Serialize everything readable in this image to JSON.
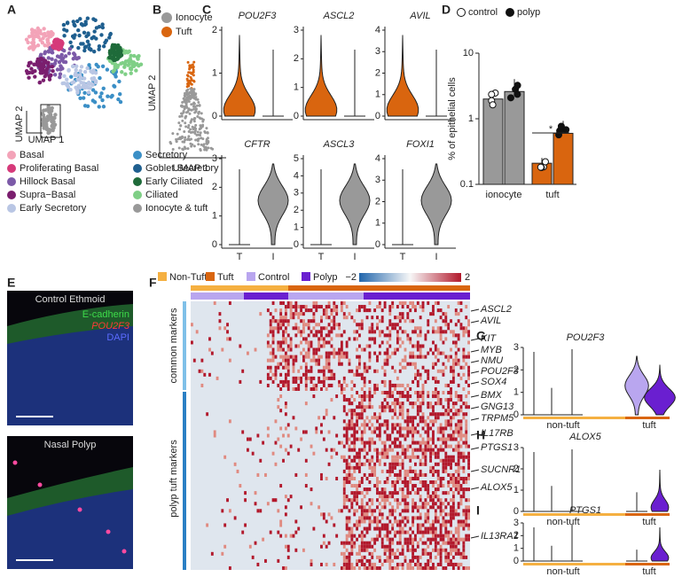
{
  "panels": [
    "A",
    "B",
    "C",
    "D",
    "E",
    "F",
    "G",
    "H",
    "I"
  ],
  "panel_a": {
    "axis_x": "UMAP 1",
    "axis_y": "UMAP 2",
    "legend": [
      "Basal",
      "Proliferating Basal",
      "Hillock Basal",
      "Supra−Basal",
      "Early Secretory",
      "Secretory",
      "Goblet Secretory",
      "Early Ciliated",
      "Ciliated",
      "Ionocyte & tuft"
    ],
    "legend_colors": [
      "#f3a3b8",
      "#d63a7a",
      "#7c5aa8",
      "#7a1e6e",
      "#b9c6e4",
      "#3b8fc6",
      "#1f5f8f",
      "#1f6b3a",
      "#7fcf86",
      "#999999"
    ]
  },
  "panel_b": {
    "legend": [
      "Ionocyte",
      "Tuft"
    ],
    "legend_colors": [
      "#999999",
      "#d9650f"
    ],
    "axis_x": "UMAP 1",
    "axis_y": "UMAP 2"
  },
  "panel_c": {
    "groups": [
      "T",
      "I"
    ],
    "violins": [
      {
        "gene": "POU2F3",
        "yticks": [
          0,
          1,
          2
        ]
      },
      {
        "gene": "ASCL2",
        "yticks": [
          0,
          1,
          2,
          3
        ]
      },
      {
        "gene": "AVIL",
        "yticks": [
          0,
          1,
          2,
          3,
          4
        ]
      },
      {
        "gene": "CFTR",
        "yticks": [
          0,
          1,
          2,
          3
        ]
      },
      {
        "gene": "ASCL3",
        "yticks": [
          0,
          1,
          2,
          3,
          4,
          5
        ]
      },
      {
        "gene": "FOXI1",
        "yticks": [
          0,
          1,
          2,
          3,
          4
        ]
      }
    ]
  },
  "panel_d": {
    "y_label": "% of epithelial cells",
    "log_scale": true,
    "ylim": [
      0.1,
      10
    ],
    "yticks": [
      0.1,
      1,
      10
    ],
    "categories": [
      "ionocyte",
      "tuft"
    ],
    "category_colors": [
      "#999999",
      "#d9650f"
    ],
    "series": [
      {
        "name": "control",
        "values": [
          2.0,
          0.21
        ]
      },
      {
        "name": "polyp",
        "values": [
          2.6,
          0.6
        ]
      }
    ],
    "significance": "*"
  },
  "panel_e": {
    "top_title": "Control Ethmoid",
    "stains": [
      "E-cadherin",
      "POU2F3",
      "DAPI"
    ],
    "bottom_title": "Nasal Polyp"
  },
  "panel_f": {
    "legend": [
      "Non-Tuft",
      "Tuft",
      "Control",
      "Polyp"
    ],
    "scale_min": "−2",
    "scale_max": "2",
    "row_groups": [
      "common markers",
      "polyp tuft markers"
    ],
    "genes": [
      "ASCL2",
      "AVIL",
      "KIT",
      "MYB",
      "NMU",
      "POU2F3",
      "SOX4",
      "BMX",
      "GNG13",
      "TRPM5",
      "IL17RB",
      "PTGS1",
      "SUCNR1",
      "ALOX5",
      "IL13RA1"
    ]
  },
  "panel_ghi": {
    "groups": [
      "non-tuft",
      "tuft"
    ],
    "violins": [
      {
        "gene": "POU2F3",
        "yticks": [
          0,
          1,
          2,
          3
        ]
      },
      {
        "gene": "ALOX5",
        "yticks": [
          0,
          1,
          2,
          3
        ]
      },
      {
        "gene": "PTGS1",
        "yticks": [
          0,
          1,
          2,
          3
        ]
      }
    ]
  }
}
